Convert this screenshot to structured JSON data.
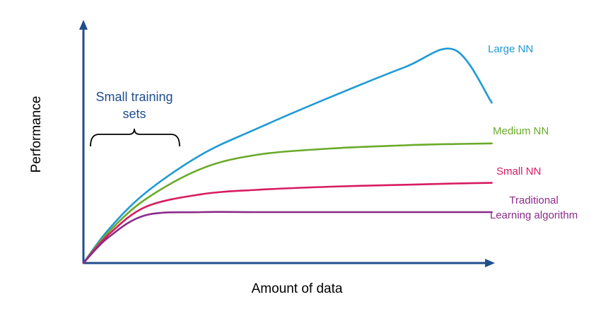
{
  "chart_data": {
    "type": "line",
    "xlabel": "Amount of data",
    "ylabel": "Performance",
    "axis_color": "#1f4e8c",
    "tick_labels": false,
    "grid": false,
    "series": [
      {
        "name": "Large NN",
        "color": "#1f9ad6",
        "label_lines": [
          "Large NN"
        ],
        "points": [
          [
            0,
            0
          ],
          [
            20,
            52
          ],
          [
            50,
            110
          ],
          [
            95,
            170
          ],
          [
            140,
            211
          ],
          [
            200,
            261
          ],
          [
            260,
            308
          ],
          [
            300,
            335
          ],
          [
            330,
            252
          ]
        ]
      },
      {
        "name": "Medium NN",
        "color": "#6aaa2a",
        "label_lines": [
          "Medium NN"
        ],
        "points": [
          [
            0,
            0
          ],
          [
            20,
            48
          ],
          [
            50,
            100
          ],
          [
            95,
            148
          ],
          [
            140,
            170
          ],
          [
            200,
            180
          ],
          [
            260,
            185
          ],
          [
            300,
            187
          ],
          [
            330,
            188
          ]
        ]
      },
      {
        "name": "Small NN",
        "color": "#d81b60",
        "label_lines": [
          "Small NN"
        ],
        "points": [
          [
            0,
            0
          ],
          [
            20,
            44
          ],
          [
            50,
            88
          ],
          [
            95,
            108
          ],
          [
            140,
            115
          ],
          [
            200,
            120
          ],
          [
            260,
            123
          ],
          [
            300,
            125
          ],
          [
            330,
            126
          ]
        ]
      },
      {
        "name": "Traditional Learning algorithm",
        "color": "#8b2c8b",
        "label_lines": [
          "Traditional",
          "Learning algorithm"
        ],
        "points": [
          [
            0,
            0
          ],
          [
            20,
            40
          ],
          [
            50,
            75
          ],
          [
            95,
            80
          ],
          [
            140,
            80
          ],
          [
            200,
            80
          ],
          [
            260,
            80
          ],
          [
            300,
            80
          ],
          [
            330,
            80
          ]
        ]
      }
    ],
    "annotations": [
      {
        "name": "small-training-sets",
        "lines": [
          "Small training",
          "sets"
        ],
        "color": "#1f4e8c",
        "type": "brace"
      }
    ]
  }
}
